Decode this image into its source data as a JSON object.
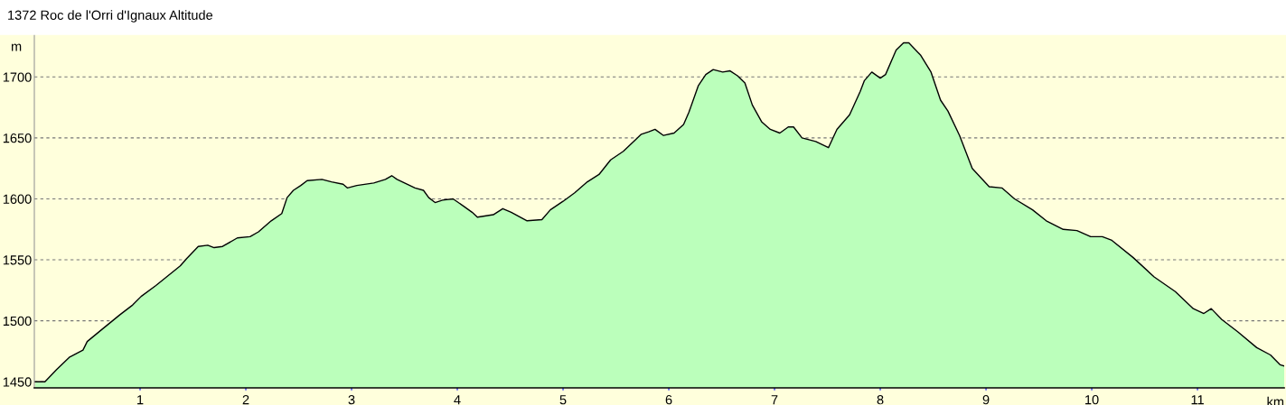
{
  "chart_data": {
    "type": "area",
    "title": "1372 Roc de l'Orri d'Ignaux Altitude",
    "xlabel": "km",
    "ylabel": "m",
    "x": [
      0.01,
      0.1,
      0.21,
      0.33,
      0.46,
      0.5,
      0.64,
      0.81,
      0.93,
      1.01,
      1.15,
      1.38,
      1.44,
      1.55,
      1.64,
      1.7,
      1.78,
      1.92,
      2.04,
      2.12,
      2.24,
      2.34,
      2.39,
      2.45,
      2.52,
      2.58,
      2.72,
      2.81,
      2.92,
      2.96,
      3.05,
      3.21,
      3.32,
      3.38,
      3.43,
      3.6,
      3.68,
      3.73,
      3.79,
      3.86,
      3.96,
      4.06,
      4.14,
      4.19,
      4.34,
      4.43,
      4.51,
      4.66,
      4.8,
      4.88,
      5.0,
      5.11,
      5.23,
      5.34,
      5.45,
      5.57,
      5.68,
      5.74,
      5.81,
      5.87,
      5.95,
      6.05,
      6.14,
      6.19,
      6.28,
      6.35,
      6.42,
      6.51,
      6.58,
      6.65,
      6.72,
      6.79,
      6.88,
      6.96,
      7.05,
      7.13,
      7.18,
      7.26,
      7.39,
      7.51,
      7.59,
      7.71,
      7.81,
      7.85,
      7.92,
      8.0,
      8.05,
      8.15,
      8.22,
      8.27,
      8.38,
      8.48,
      8.57,
      8.64,
      8.75,
      8.87,
      9.03,
      9.15,
      9.27,
      9.44,
      9.57,
      9.73,
      9.86,
      9.99,
      10.1,
      10.19,
      10.39,
      10.59,
      10.79,
      10.96,
      11.06,
      11.13,
      11.23,
      11.38,
      11.56,
      11.69,
      11.78,
      11.82
    ],
    "series": [
      {
        "color": "#bbffbb",
        "values": [
          1450,
          1450,
          1460,
          1470,
          1476,
          1483,
          1493,
          1505,
          1513,
          1520,
          1529,
          1545,
          1551,
          1561,
          1562,
          1560,
          1561,
          1568,
          1569,
          1573,
          1582,
          1588,
          1601,
          1607,
          1611,
          1615,
          1616,
          1614,
          1612,
          1609,
          1611,
          1613,
          1616,
          1619,
          1616,
          1609,
          1607,
          1601,
          1597,
          1599,
          1600,
          1594,
          1589,
          1585,
          1587,
          1592,
          1589,
          1582,
          1583,
          1591,
          1598,
          1605,
          1614,
          1620,
          1632,
          1639,
          1648,
          1653,
          1655,
          1657,
          1652,
          1654,
          1661,
          1671,
          1693,
          1702,
          1706,
          1704,
          1705,
          1701,
          1695,
          1677,
          1663,
          1657,
          1654,
          1659,
          1659,
          1650,
          1647,
          1642,
          1657,
          1669,
          1688,
          1697,
          1704,
          1699,
          1702,
          1722,
          1728,
          1728,
          1718,
          1704,
          1681,
          1672,
          1652,
          1625,
          1610,
          1609,
          1600,
          1591,
          1582,
          1575,
          1574,
          1569,
          1569,
          1566,
          1552,
          1536,
          1524,
          1510,
          1506,
          1510,
          1501,
          1491,
          1478,
          1472,
          1464,
          1463
        ]
      }
    ],
    "xlim": [
      0,
      11.82
    ],
    "ylim": [
      1445,
      1735
    ],
    "xticks": [
      1,
      2,
      3,
      4,
      5,
      6,
      7,
      8,
      9,
      10,
      11
    ],
    "yticks": [
      1450,
      1500,
      1550,
      1600,
      1650,
      1700
    ],
    "grid": "y",
    "legend": false
  }
}
